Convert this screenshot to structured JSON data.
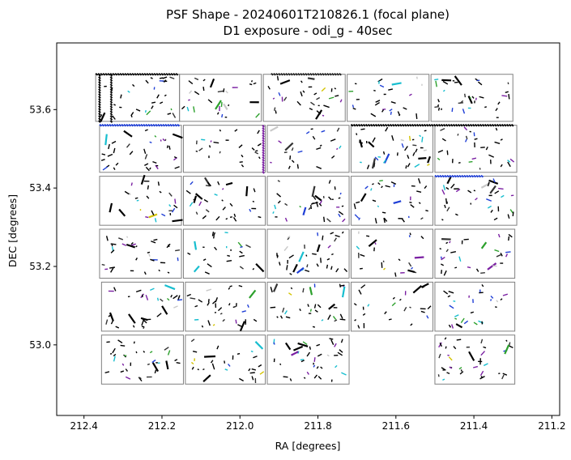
{
  "chart_data": {
    "type": "scatter",
    "title": "PSF Shape - 20240601T210826.1 (focal plane)",
    "subtitle": "D1 exposure - odi_g - 40sec",
    "xlabel": "RA [degrees]",
    "ylabel": "DEC [degrees]",
    "xlim": [
      212.47,
      211.18
    ],
    "ylim": [
      52.82,
      53.77
    ],
    "x_inverted": true,
    "xticks": [
      212.4,
      212.2,
      212.0,
      211.8,
      211.6,
      211.4,
      211.2
    ],
    "xtick_labels": [
      "212.4",
      "212.2",
      "212.0",
      "211.8",
      "211.6",
      "211.4",
      "211.2"
    ],
    "yticks": [
      53.0,
      53.2,
      53.4,
      53.6
    ],
    "ytick_labels": [
      "53.0",
      "53.2",
      "53.4",
      "53.6"
    ],
    "grid": false,
    "legend": "none",
    "ccd_outline_color": "#808080",
    "whisker_colors": [
      "#000000",
      "#333333",
      "#7a1fa2",
      "#1f3fd6",
      "#17becf",
      "#2ca02c",
      "#c8c8c8",
      "#d4c400"
    ],
    "ccd_outlines": [
      {
        "row": 1,
        "col": 1,
        "ra": [
          212.37,
          212.155
        ],
        "dec": [
          53.57,
          53.69
        ]
      },
      {
        "row": 1,
        "col": 2,
        "ra": [
          212.155,
          211.945
        ],
        "dec": [
          53.57,
          53.69
        ]
      },
      {
        "row": 1,
        "col": 3,
        "ra": [
          211.94,
          211.73
        ],
        "dec": [
          53.57,
          53.69
        ]
      },
      {
        "row": 1,
        "col": 4,
        "ra": [
          211.725,
          211.515
        ],
        "dec": [
          53.57,
          53.69
        ]
      },
      {
        "row": 1,
        "col": 5,
        "ra": [
          211.51,
          211.3
        ],
        "dec": [
          53.57,
          53.69
        ]
      },
      {
        "row": 2,
        "col": 1,
        "ra": [
          212.36,
          212.15
        ],
        "dec": [
          53.44,
          53.56
        ]
      },
      {
        "row": 2,
        "col": 2,
        "ra": [
          212.145,
          211.935
        ],
        "dec": [
          53.44,
          53.56
        ]
      },
      {
        "row": 2,
        "col": 3,
        "ra": [
          211.93,
          211.72
        ],
        "dec": [
          53.44,
          53.56
        ]
      },
      {
        "row": 2,
        "col": 4,
        "ra": [
          211.715,
          211.505
        ],
        "dec": [
          53.44,
          53.56
        ]
      },
      {
        "row": 2,
        "col": 5,
        "ra": [
          211.5,
          211.29
        ],
        "dec": [
          53.44,
          53.56
        ]
      },
      {
        "row": 3,
        "col": 1,
        "ra": [
          212.36,
          212.15
        ],
        "dec": [
          53.305,
          53.43
        ]
      },
      {
        "row": 3,
        "col": 2,
        "ra": [
          212.145,
          211.935
        ],
        "dec": [
          53.305,
          53.43
        ]
      },
      {
        "row": 3,
        "col": 3,
        "ra": [
          211.93,
          211.72
        ],
        "dec": [
          53.305,
          53.43
        ]
      },
      {
        "row": 3,
        "col": 4,
        "ra": [
          211.715,
          211.505
        ],
        "dec": [
          53.305,
          53.43
        ]
      },
      {
        "row": 3,
        "col": 5,
        "ra": [
          211.5,
          211.29
        ],
        "dec": [
          53.305,
          53.43
        ]
      },
      {
        "row": 4,
        "col": 1,
        "ra": [
          212.36,
          212.15
        ],
        "dec": [
          53.17,
          53.295
        ]
      },
      {
        "row": 4,
        "col": 2,
        "ra": [
          212.145,
          211.935
        ],
        "dec": [
          53.17,
          53.295
        ]
      },
      {
        "row": 4,
        "col": 3,
        "ra": [
          211.93,
          211.72
        ],
        "dec": [
          53.17,
          53.295
        ]
      },
      {
        "row": 4,
        "col": 4,
        "ra": [
          211.715,
          211.505
        ],
        "dec": [
          53.17,
          53.295
        ]
      },
      {
        "row": 4,
        "col": 5,
        "ra": [
          211.5,
          211.295
        ],
        "dec": [
          53.17,
          53.295
        ]
      },
      {
        "row": 5,
        "col": 1,
        "ra": [
          212.355,
          212.145
        ],
        "dec": [
          53.035,
          53.16
        ]
      },
      {
        "row": 5,
        "col": 2,
        "ra": [
          212.14,
          211.935
        ],
        "dec": [
          53.035,
          53.16
        ]
      },
      {
        "row": 5,
        "col": 3,
        "ra": [
          211.93,
          211.72
        ],
        "dec": [
          53.035,
          53.16
        ]
      },
      {
        "row": 5,
        "col": 4,
        "ra": [
          211.715,
          211.505
        ],
        "dec": [
          53.035,
          53.16
        ]
      },
      {
        "row": 5,
        "col": 5,
        "ra": [
          211.5,
          211.295
        ],
        "dec": [
          53.035,
          53.16
        ]
      },
      {
        "row": 6,
        "col": 1,
        "ra": [
          212.355,
          212.145
        ],
        "dec": [
          52.9,
          53.025
        ]
      },
      {
        "row": 6,
        "col": 2,
        "ra": [
          212.14,
          211.935
        ],
        "dec": [
          52.9,
          53.025
        ]
      },
      {
        "row": 6,
        "col": 3,
        "ra": [
          211.93,
          211.72
        ],
        "dec": [
          52.9,
          53.025
        ]
      },
      {
        "row": 6,
        "col": 5,
        "ra": [
          211.5,
          211.295
        ],
        "dec": [
          52.9,
          53.025
        ]
      }
    ]
  }
}
